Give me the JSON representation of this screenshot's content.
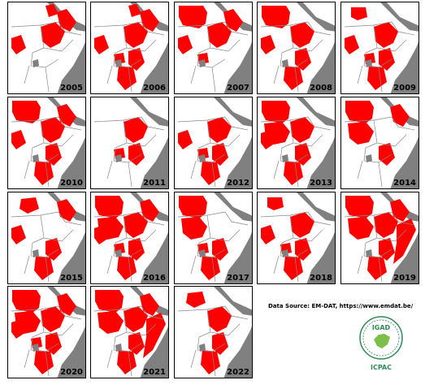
{
  "panels": [
    {
      "year": "2005",
      "regions": [
        "ne",
        "e",
        "ethio",
        "sw"
      ]
    },
    {
      "year": "2006",
      "regions": [
        "ne",
        "e",
        "ethio",
        "ke",
        "tz",
        "ug",
        "sw"
      ]
    },
    {
      "year": "2007",
      "regions": [
        "sudan",
        "ethio",
        "e",
        "sw",
        "ug"
      ]
    },
    {
      "year": "2008",
      "regions": [
        "sudan",
        "ethio",
        "ke",
        "tz",
        "sw",
        "sn"
      ]
    },
    {
      "year": "2009",
      "regions": [
        "nn",
        "ethio",
        "ke",
        "tz",
        "ug",
        "sw"
      ]
    },
    {
      "year": "2010",
      "regions": [
        "sudan",
        "ethio",
        "ke",
        "tz",
        "sw",
        "sn",
        "e"
      ]
    },
    {
      "year": "2011",
      "regions": [
        "ethio",
        "ke",
        "ug"
      ]
    },
    {
      "year": "2012",
      "regions": [
        "ethio",
        "ke",
        "tz",
        "ug",
        "sw"
      ]
    },
    {
      "year": "2013",
      "regions": [
        "sudan",
        "ssn",
        "ethio",
        "ke",
        "tz",
        "sw",
        "sn"
      ]
    },
    {
      "year": "2014",
      "regions": [
        "sudan",
        "ssn",
        "ke",
        "e"
      ]
    },
    {
      "year": "2015",
      "regions": [
        "sw",
        "sn",
        "ke",
        "tz",
        "e"
      ]
    },
    {
      "year": "2016",
      "regions": [
        "sudan",
        "ssn",
        "ethio",
        "ke",
        "tz",
        "ug",
        "sw",
        "e",
        "sn"
      ]
    },
    {
      "year": "2017",
      "regions": [
        "sudan",
        "ssn",
        "ke",
        "tz",
        "ug"
      ]
    },
    {
      "year": "2018",
      "regions": [
        "nn",
        "ethio",
        "ke",
        "tz",
        "sw",
        "ug"
      ]
    },
    {
      "year": "2019",
      "regions": [
        "sudan",
        "ssn",
        "ethio",
        "ke",
        "tz",
        "e",
        "som"
      ]
    },
    {
      "year": "2020",
      "regions": [
        "sudan",
        "ssn",
        "ethio",
        "ke",
        "tz",
        "ug",
        "sw",
        "e"
      ]
    },
    {
      "year": "2021",
      "regions": [
        "sudan",
        "ssn",
        "ethio",
        "ke",
        "tz",
        "som",
        "e"
      ]
    },
    {
      "year": "2022",
      "regions": [
        "sn",
        "ethio",
        "ke",
        "tz"
      ]
    }
  ],
  "source_text": "Data Source: EM-DAT, https://www.emdat.be/",
  "logo": {
    "top": "IGAD",
    "bottom": "ICPAC"
  },
  "colors": {
    "flood": "#ff0000",
    "sea": "#808080",
    "lake": "#808080",
    "border": "#888888",
    "logo": "#2e8b57"
  }
}
